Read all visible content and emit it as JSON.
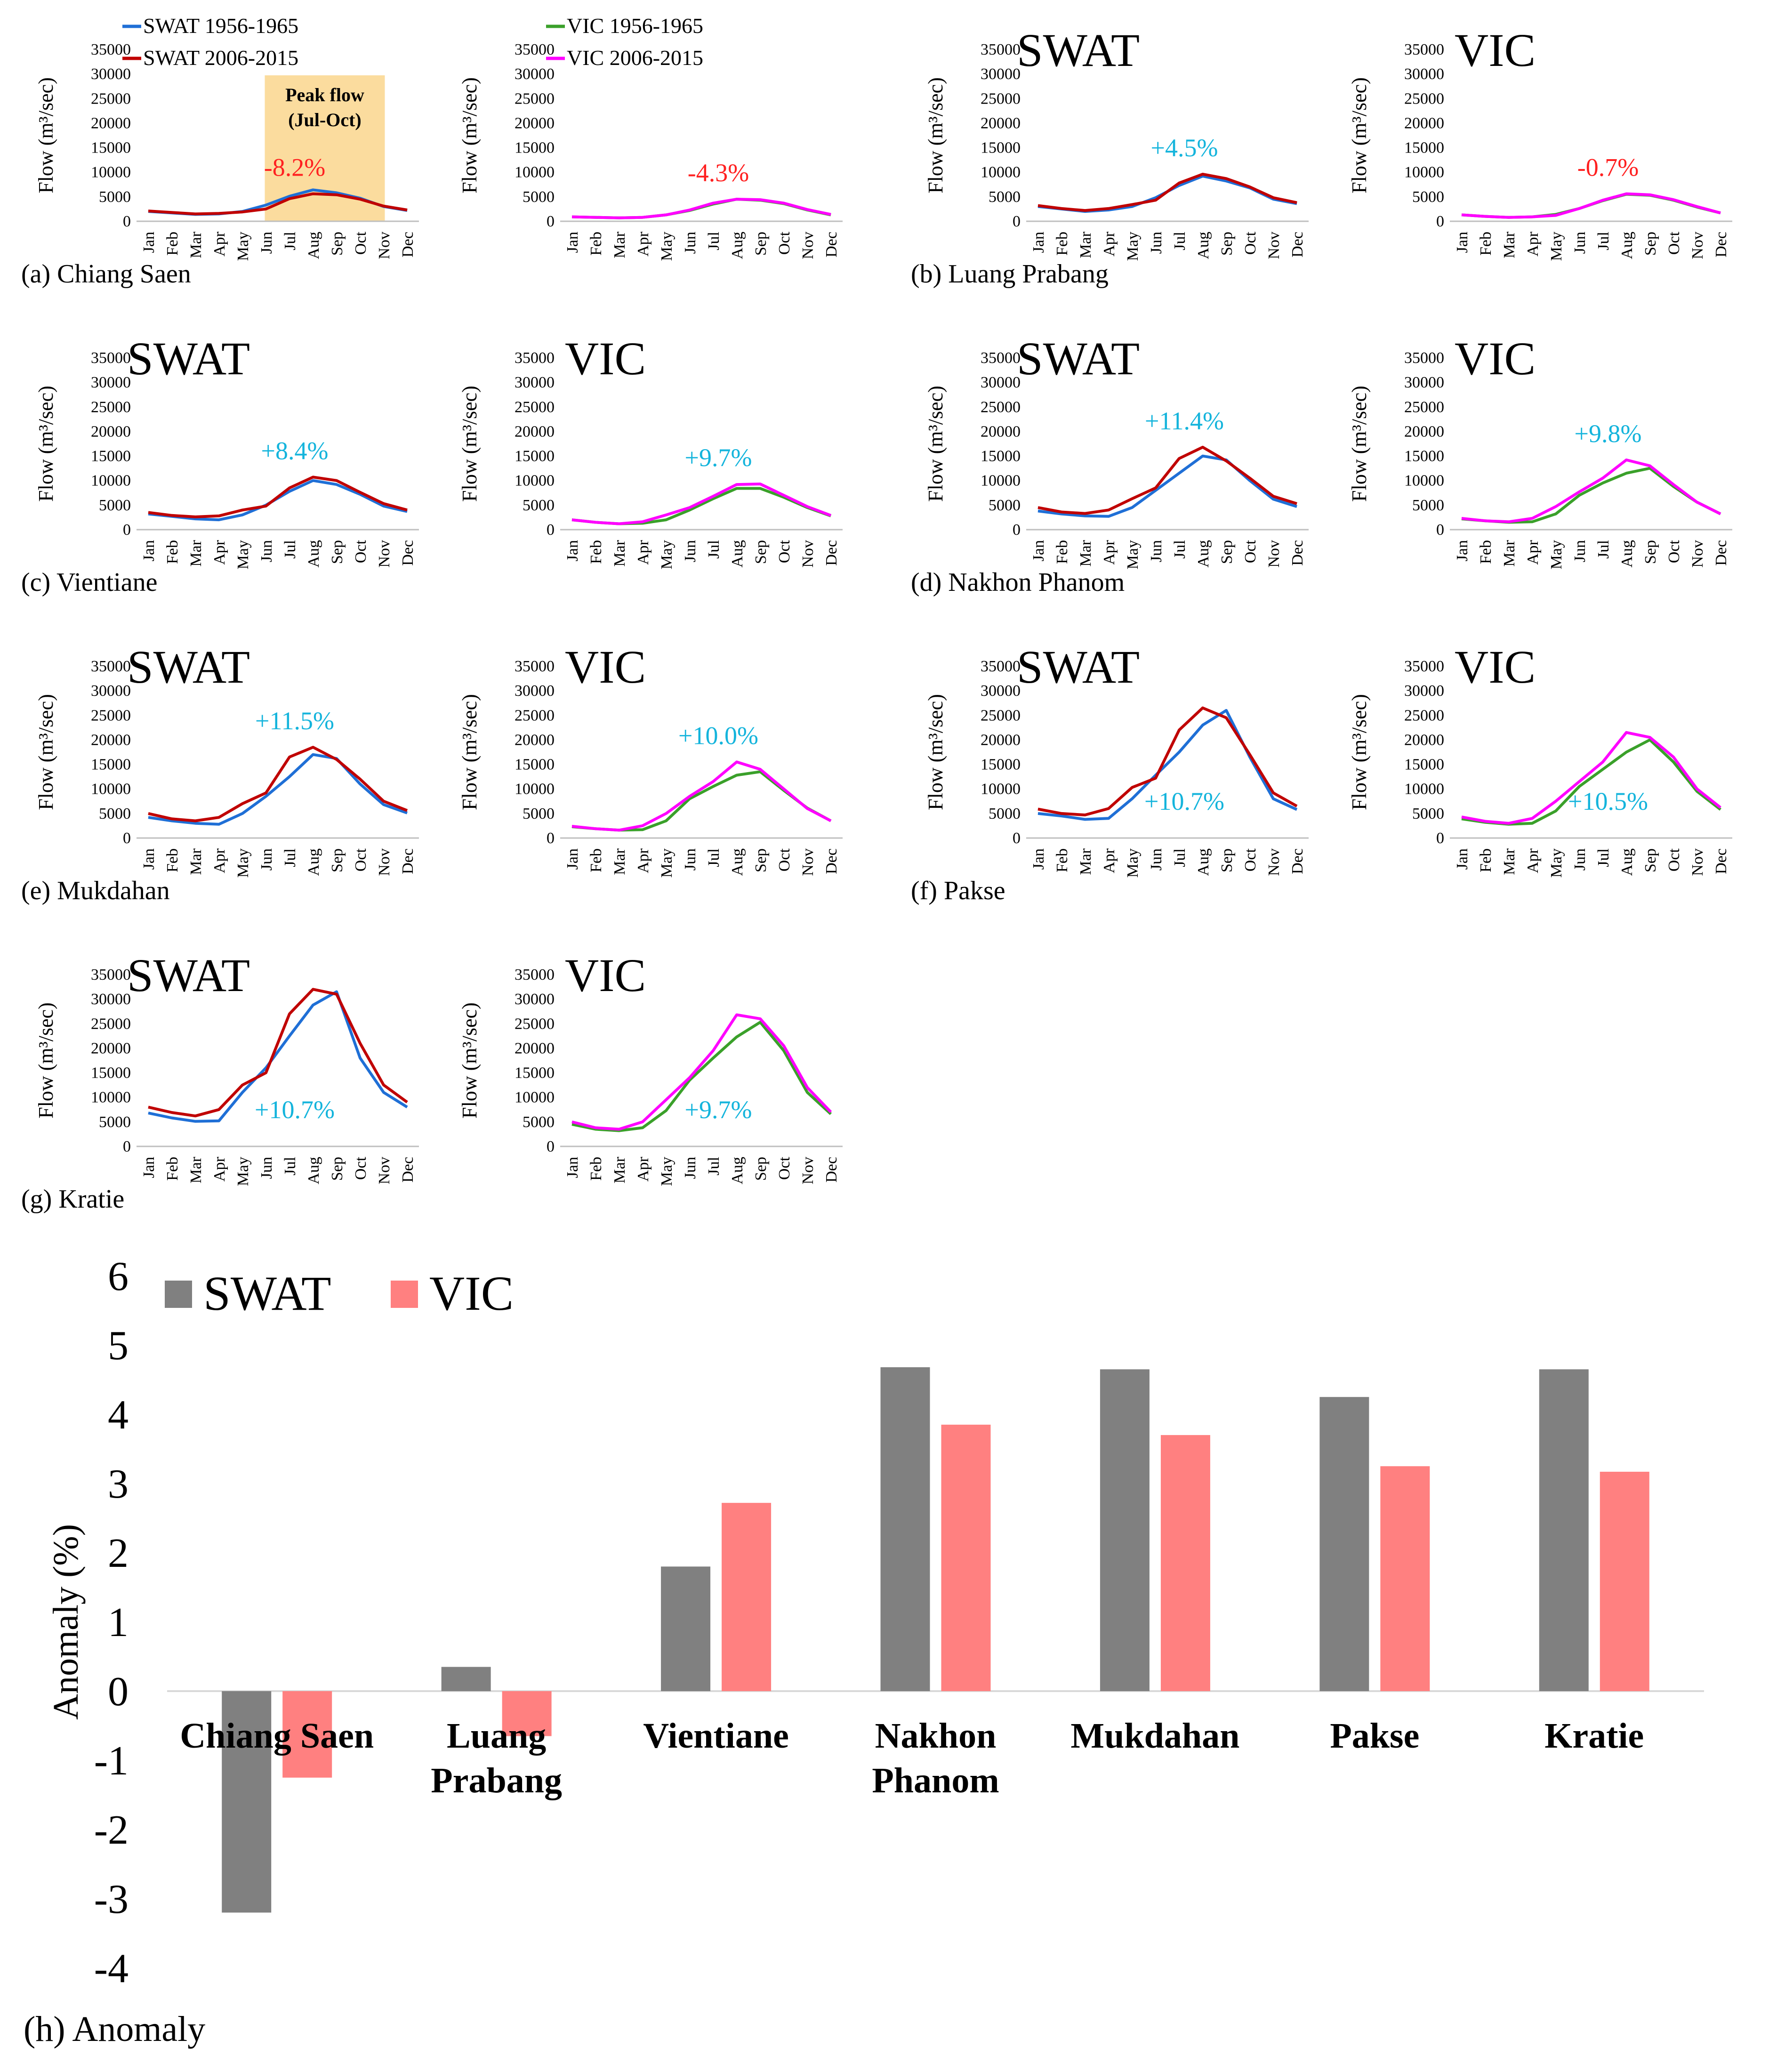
{
  "figure": {
    "months": [
      "Jan",
      "Feb",
      "Mar",
      "Apr",
      "May",
      "Jun",
      "Jul",
      "Aug",
      "Sep",
      "Oct",
      "Nov",
      "Dec"
    ],
    "y_axis_label": "Flow (m³/sec)",
    "y_ticks": [
      0,
      5000,
      10000,
      15000,
      20000,
      25000,
      30000,
      35000
    ],
    "legend_swat": [
      "SWAT 1956-1965",
      "SWAT 2006-2015"
    ],
    "legend_vic": [
      "VIC 1956-1965",
      "VIC 2006-2015"
    ],
    "peak_flow_label": [
      "Peak flow",
      "(Jul-Oct)"
    ],
    "model_swat": "SWAT",
    "model_vic": "VIC"
  },
  "colors": {
    "swat_early": "#1f6fd6",
    "swat_late": "#c00000",
    "vic_early": "#3aa02a",
    "vic_late": "#ff00ff",
    "positive": "#14b4dc",
    "negative": "#ff2020",
    "bar_swat": "#808080",
    "bar_vic": "#ff8080",
    "peak_box": "#fbdc9e"
  },
  "chart_data": [
    {
      "type": "line",
      "station": "Chiang Saen",
      "panel_label": "(a) Chiang Saen",
      "swat": {
        "annotation": "-8.2%",
        "ylim": [
          0,
          35000
        ],
        "series": [
          {
            "name": "SWAT 1956-1965",
            "values": [
              2000,
              1700,
              1400,
              1500,
              2000,
              3300,
              5100,
              6400,
              5800,
              4700,
              3000,
              2200
            ]
          },
          {
            "name": "SWAT 2006-2015",
            "values": [
              2100,
              1800,
              1500,
              1600,
              1900,
              2500,
              4600,
              5600,
              5400,
              4500,
              3100,
              2300
            ]
          }
        ]
      },
      "vic": {
        "annotation": "-4.3%",
        "ylim": [
          0,
          35000
        ],
        "series": [
          {
            "name": "VIC 1956-1965",
            "values": [
              900,
              800,
              700,
              800,
              1300,
              2200,
              3500,
              4500,
              4300,
              3600,
              2300,
              1300
            ]
          },
          {
            "name": "VIC 2006-2015",
            "values": [
              900,
              800,
              700,
              800,
              1300,
              2300,
              3700,
              4500,
              4400,
              3700,
              2400,
              1400
            ]
          }
        ]
      }
    },
    {
      "type": "line",
      "station": "Luang Prabang",
      "panel_label": "(b) Luang Prabang",
      "swat": {
        "annotation": "+4.5%",
        "ylim": [
          0,
          35000
        ],
        "series": [
          {
            "name": "SWAT 1956-1965",
            "values": [
              3000,
              2500,
              2000,
              2300,
              3000,
              4800,
              7300,
              9200,
              8200,
              6800,
              4500,
              3600
            ]
          },
          {
            "name": "SWAT 2006-2015",
            "values": [
              3200,
              2600,
              2200,
              2600,
              3400,
              4300,
              7800,
              9600,
              8700,
              7000,
              4800,
              3800
            ]
          }
        ]
      },
      "vic": {
        "annotation": "-0.7%",
        "ylim": [
          0,
          35000
        ],
        "series": [
          {
            "name": "VIC 1956-1965",
            "values": [
              1300,
              1000,
              800,
              900,
              1400,
              2600,
              4200,
              5500,
              5300,
              4300,
              2900,
              1700
            ]
          },
          {
            "name": "VIC 2006-2015",
            "values": [
              1300,
              1000,
              800,
              900,
              1200,
              2600,
              4300,
              5600,
              5400,
              4400,
              3000,
              1700
            ]
          }
        ]
      }
    },
    {
      "type": "line",
      "station": "Vientiane",
      "panel_label": "(c) Vientiane",
      "swat": {
        "annotation": "+8.4%",
        "ylim": [
          0,
          35000
        ],
        "series": [
          {
            "name": "SWAT 1956-1965",
            "values": [
              3200,
              2700,
              2200,
              2000,
              3000,
              5000,
              7800,
              10000,
              9200,
              7200,
              4800,
              3700
            ]
          },
          {
            "name": "SWAT 2006-2015",
            "values": [
              3500,
              2900,
              2600,
              2800,
              4000,
              4800,
              8500,
              10700,
              10000,
              7600,
              5300,
              4000
            ]
          }
        ]
      },
      "vic": {
        "annotation": "+9.7%",
        "ylim": [
          0,
          35000
        ],
        "series": [
          {
            "name": "VIC 1956-1965",
            "values": [
              2000,
              1500,
              1200,
              1300,
              2000,
              4000,
              6300,
              8400,
              8400,
              6600,
              4500,
              2800
            ]
          },
          {
            "name": "VIC 2006-2015",
            "values": [
              2000,
              1500,
              1200,
              1600,
              3000,
              4500,
              6800,
              9200,
              9300,
              7000,
              4700,
              2900
            ]
          }
        ]
      }
    },
    {
      "type": "line",
      "station": "Nakhon Phanom",
      "panel_label": "(d) Nakhon Phanom",
      "swat": {
        "annotation": "+11.4%",
        "ylim": [
          0,
          35000
        ],
        "series": [
          {
            "name": "SWAT 1956-1965",
            "values": [
              3800,
              3200,
              2800,
              2700,
              4500,
              8000,
              11500,
              15000,
              14200,
              10000,
              6200,
              4700
            ]
          },
          {
            "name": "SWAT 2006-2015",
            "values": [
              4500,
              3600,
              3300,
              4000,
              6300,
              8500,
              14500,
              16800,
              14000,
              10500,
              6800,
              5300
            ]
          }
        ]
      },
      "vic": {
        "annotation": "+9.8%",
        "ylim": [
          0,
          35000
        ],
        "series": [
          {
            "name": "VIC 1956-1965",
            "values": [
              2200,
              1800,
              1500,
              1600,
              3200,
              7000,
              9500,
              11500,
              12500,
              8800,
              5600,
              3200
            ]
          },
          {
            "name": "VIC 2006-2015",
            "values": [
              2300,
              1800,
              1600,
              2300,
              4700,
              7700,
              10500,
              14200,
              13000,
              9200,
              5600,
              3200
            ]
          }
        ]
      }
    },
    {
      "type": "line",
      "station": "Mukdahan",
      "panel_label": "(e) Mukdahan",
      "swat": {
        "annotation": "+11.5%",
        "ylim": [
          0,
          35000
        ],
        "series": [
          {
            "name": "SWAT 1956-1965",
            "values": [
              4200,
              3500,
              3000,
              2800,
              5000,
              8500,
              12500,
              17000,
              16200,
              11000,
              6800,
              5100
            ]
          },
          {
            "name": "SWAT 2006-2015",
            "values": [
              5000,
              3900,
              3500,
              4200,
              7000,
              9200,
              16500,
              18500,
              16000,
              12000,
              7500,
              5600
            ]
          }
        ]
      },
      "vic": {
        "annotation": "+10.0%",
        "ylim": [
          0,
          35000
        ],
        "series": [
          {
            "name": "VIC 1956-1965",
            "values": [
              2300,
              1900,
              1600,
              1700,
              3500,
              8000,
              10500,
              12800,
              13500,
              9700,
              6100,
              3500
            ]
          },
          {
            "name": "VIC 2006-2015",
            "values": [
              2400,
              1900,
              1600,
              2500,
              5000,
              8500,
              11500,
              15500,
              14000,
              10000,
              6000,
              3500
            ]
          }
        ]
      }
    },
    {
      "type": "line",
      "station": "Pakse",
      "panel_label": "(f) Pakse",
      "swat": {
        "annotation": "+10.7%",
        "ylim": [
          0,
          35000
        ],
        "series": [
          {
            "name": "SWAT 1956-1965",
            "values": [
              5000,
              4500,
              3800,
              4000,
              8000,
              12800,
              17500,
              23000,
              26000,
              16500,
              8000,
              5800
            ]
          },
          {
            "name": "SWAT 2006-2015",
            "values": [
              5900,
              5000,
              4700,
              6000,
              10300,
              12200,
              22000,
              26500,
              24500,
              17000,
              9200,
              6500
            ]
          }
        ]
      },
      "vic": {
        "annotation": "+10.5%",
        "ylim": [
          0,
          35000
        ],
        "series": [
          {
            "name": "VIC 1956-1965",
            "values": [
              3900,
              3200,
              2800,
              3000,
              5500,
              10500,
              14000,
              17500,
              20000,
              15500,
              9500,
              5800
            ]
          },
          {
            "name": "VIC 2006-2015",
            "values": [
              4300,
              3400,
              3000,
              4000,
              7500,
              11500,
              15500,
              21500,
              20500,
              16500,
              10000,
              6200
            ]
          }
        ]
      }
    },
    {
      "type": "line",
      "station": "Kratie",
      "panel_label": "(g) Kratie",
      "swat": {
        "annotation": "+10.7%",
        "ylim": [
          0,
          35000
        ],
        "series": [
          {
            "name": "SWAT 1956-1965",
            "values": [
              6800,
              5800,
              5100,
              5200,
              11000,
              16000,
              22500,
              28800,
              31500,
              18000,
              11000,
              8000
            ]
          },
          {
            "name": "SWAT 2006-2015",
            "values": [
              8000,
              6900,
              6200,
              7500,
              12500,
              15000,
              27000,
              32000,
              31000,
              21000,
              12500,
              9000
            ]
          }
        ]
      },
      "vic": {
        "annotation": "+9.7%",
        "ylim": [
          0,
          35000
        ],
        "series": [
          {
            "name": "VIC 1956-1965",
            "values": [
              4500,
              3500,
              3200,
              3800,
              7300,
              13500,
              18000,
              22300,
              25300,
              19500,
              11000,
              6600
            ]
          },
          {
            "name": "VIC 2006-2015",
            "values": [
              5000,
              3800,
              3500,
              5000,
              9500,
              14000,
              19500,
              26800,
              26000,
              20500,
              12000,
              7000
            ]
          }
        ]
      }
    },
    {
      "type": "bar",
      "panel_label": "(h) Anomaly",
      "title": "",
      "xlabel": "",
      "ylabel": "Anomaly (%)",
      "ylim": [
        -4,
        6
      ],
      "yticks": [
        -4,
        -3,
        -2,
        -1,
        0,
        1,
        2,
        3,
        4,
        5,
        6
      ],
      "categories": [
        [
          "Chiang Saen"
        ],
        [
          "Luang",
          "Prabang"
        ],
        [
          "Vientiane"
        ],
        [
          "Nakhon",
          "Phanom"
        ],
        [
          "Mukdahan"
        ],
        [
          "Pakse"
        ],
        [
          "Kratie"
        ]
      ],
      "series": [
        {
          "name": "SWAT",
          "values": [
            -3.2,
            0.35,
            1.8,
            4.68,
            4.65,
            4.25,
            4.65
          ]
        },
        {
          "name": "VIC",
          "values": [
            -1.25,
            -0.65,
            2.72,
            3.85,
            3.7,
            3.25,
            3.17
          ]
        }
      ]
    }
  ]
}
